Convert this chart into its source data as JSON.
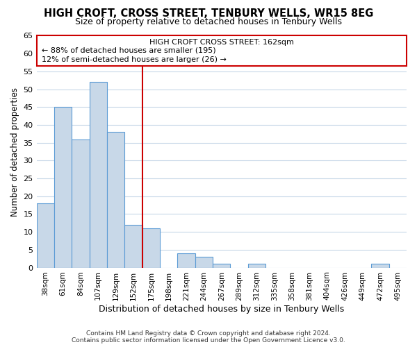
{
  "title": "HIGH CROFT, CROSS STREET, TENBURY WELLS, WR15 8EG",
  "subtitle": "Size of property relative to detached houses in Tenbury Wells",
  "xlabel": "Distribution of detached houses by size in Tenbury Wells",
  "ylabel": "Number of detached properties",
  "bar_color": "#c8d8e8",
  "bar_edge_color": "#5b9bd5",
  "background_color": "#ffffff",
  "grid_color": "#c8d8e8",
  "annotation_box_color": "#cc0000",
  "annotation_line_color": "#cc0000",
  "bin_labels": [
    "38sqm",
    "61sqm",
    "84sqm",
    "107sqm",
    "129sqm",
    "152sqm",
    "175sqm",
    "198sqm",
    "221sqm",
    "244sqm",
    "267sqm",
    "289sqm",
    "312sqm",
    "335sqm",
    "358sqm",
    "381sqm",
    "404sqm",
    "426sqm",
    "449sqm",
    "472sqm",
    "495sqm"
  ],
  "bar_values": [
    18,
    45,
    36,
    52,
    38,
    12,
    11,
    0,
    4,
    3,
    1,
    0,
    1,
    0,
    0,
    0,
    0,
    0,
    0,
    1,
    0
  ],
  "reference_line_bin_index": 5.5,
  "ylim": [
    0,
    65
  ],
  "yticks": [
    0,
    5,
    10,
    15,
    20,
    25,
    30,
    35,
    40,
    45,
    50,
    55,
    60,
    65
  ],
  "annotation_title": "HIGH CROFT CROSS STREET: 162sqm",
  "annotation_line1": "← 88% of detached houses are smaller (195)",
  "annotation_line2": "12% of semi-detached houses are larger (26) →",
  "footer_line1": "Contains HM Land Registry data © Crown copyright and database right 2024.",
  "footer_line2": "Contains public sector information licensed under the Open Government Licence v3.0."
}
